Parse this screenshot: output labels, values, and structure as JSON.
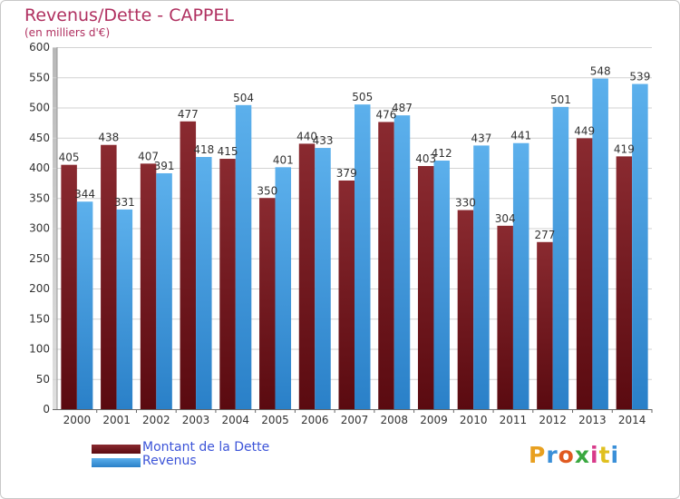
{
  "header": {
    "title": "Revenus/Dette - CAPPEL",
    "subtitle": "(en milliers d'€)"
  },
  "colors": {
    "dette": "#7a1c22",
    "revenus": "#4da3e0",
    "grid": "#d2d2d2",
    "axis_text": "#333333",
    "title": "#b03060",
    "legend_text": "#3c54d8"
  },
  "legend": {
    "dette_label": "Montant de la Dette",
    "revenus_label": "Revenus"
  },
  "logo": {
    "text": "Proxiti",
    "letter_colors": [
      "#e8a020",
      "#3a8fd8",
      "#e05a20",
      "#3aa840",
      "#d83a8a",
      "#e0c020",
      "#3a8fd8"
    ]
  },
  "chart_data": {
    "type": "bar",
    "categories": [
      "2000",
      "2001",
      "2002",
      "2003",
      "2004",
      "2005",
      "2006",
      "2007",
      "2008",
      "2009",
      "2010",
      "2011",
      "2012",
      "2013",
      "2014"
    ],
    "series": [
      {
        "name": "Montant de la Dette",
        "values": [
          405,
          438,
          407,
          477,
          415,
          350,
          440,
          379,
          476,
          403,
          330,
          304,
          277,
          449,
          419
        ]
      },
      {
        "name": "Revenus",
        "values": [
          344,
          331,
          391,
          418,
          504,
          401,
          433,
          505,
          487,
          412,
          437,
          441,
          501,
          548,
          539
        ]
      }
    ],
    "ylim": [
      0,
      600
    ],
    "yticks": [
      0,
      50,
      100,
      150,
      200,
      250,
      300,
      350,
      400,
      450,
      500,
      550,
      600
    ],
    "grid": true,
    "legend_position": "bottom-left"
  }
}
